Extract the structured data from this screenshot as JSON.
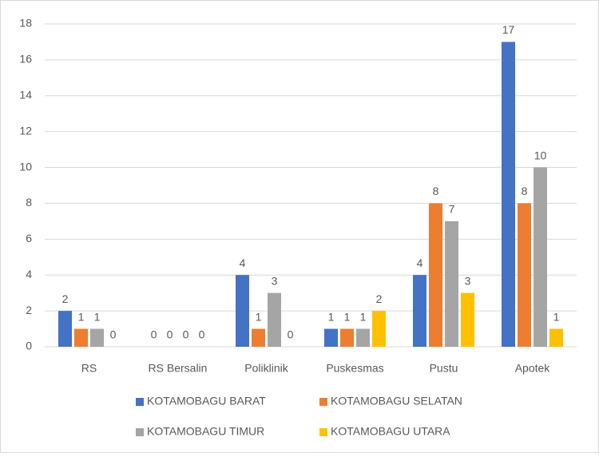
{
  "chart_data": {
    "type": "bar",
    "categories": [
      "RS",
      "RS Bersalin",
      "Poliklinik",
      "Puskesmas",
      "Pustu",
      "Apotek"
    ],
    "series": [
      {
        "name": "KOTAMOBAGU BARAT",
        "color": "#4472c4",
        "values": [
          2,
          0,
          4,
          1,
          4,
          17
        ]
      },
      {
        "name": "KOTAMOBAGU SELATAN",
        "color": "#ed7d31",
        "values": [
          1,
          0,
          1,
          1,
          8,
          8
        ]
      },
      {
        "name": "KOTAMOBAGU TIMUR",
        "color": "#a5a5a5",
        "values": [
          1,
          0,
          3,
          1,
          7,
          10
        ]
      },
      {
        "name": "KOTAMOBAGU UTARA",
        "color": "#ffc000",
        "values": [
          0,
          0,
          0,
          2,
          3,
          1
        ]
      }
    ],
    "ylim": [
      0,
      18
    ],
    "yticks": [
      0,
      2,
      4,
      6,
      8,
      10,
      12,
      14,
      16,
      18
    ],
    "grid": true,
    "legend": "bottom",
    "data_labels": true
  }
}
